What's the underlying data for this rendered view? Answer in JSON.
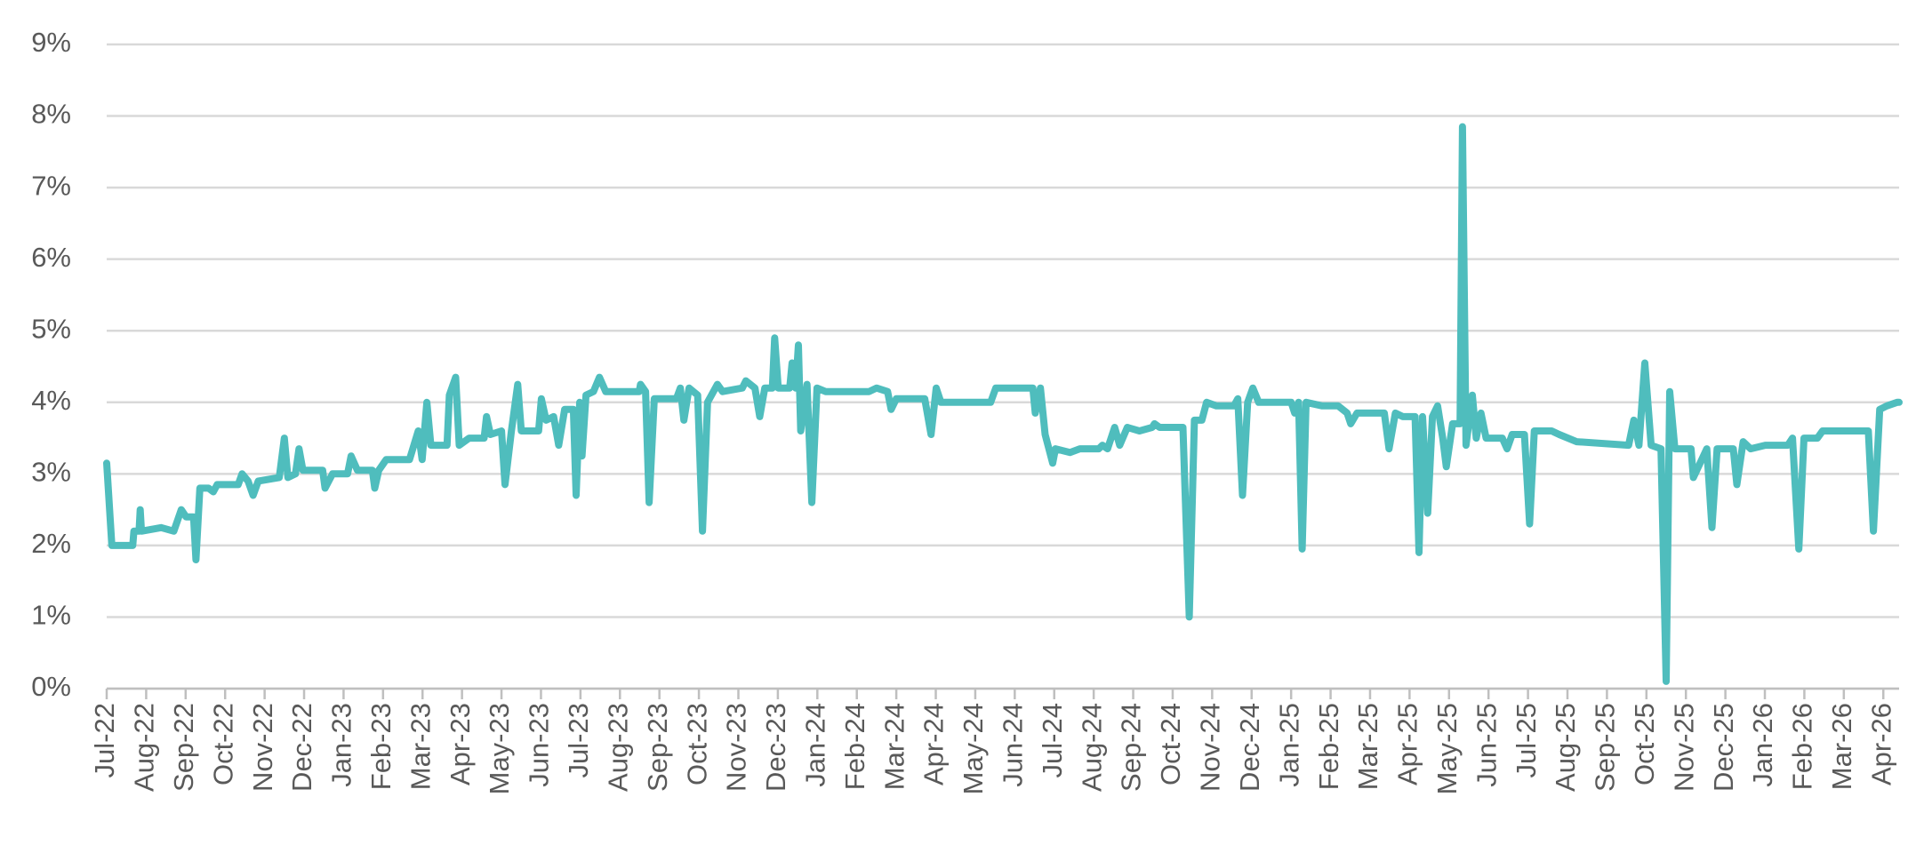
{
  "chart_data": {
    "type": "line",
    "x": [
      0,
      0.13,
      0.66,
      0.69,
      0.82,
      0.85,
      0.88,
      1.38,
      1.7,
      1.89,
      2.01,
      2.2,
      2.26,
      2.36,
      2.58,
      2.7,
      2.8,
      3.33,
      3.43,
      3.58,
      3.71,
      3.84,
      4.37,
      4.5,
      4.59,
      4.78,
      4.87,
      4.97,
      5.47,
      5.53,
      5.72,
      6.1,
      6.19,
      6.35,
      6.73,
      6.79,
      6.89,
      7.08,
      7.67,
      7.89,
      7.99,
      8.11,
      8.21,
      8.62,
      8.68,
      8.84,
      8.93,
      9.18,
      9.56,
      9.62,
      9.72,
      10.0,
      10.09,
      10.25,
      10.41,
      10.5,
      10.94,
      11.01,
      11.13,
      11.32,
      11.45,
      11.6,
      11.82,
      11.89,
      11.98,
      12.04,
      12.14,
      12.33,
      12.48,
      12.64,
      13.49,
      13.52,
      13.65,
      13.74,
      13.87,
      14.43,
      14.53,
      14.62,
      14.75,
      14.97,
      15.09,
      15.22,
      15.47,
      15.6,
      16.1,
      16.19,
      16.42,
      16.54,
      16.67,
      16.86,
      16.92,
      17.01,
      17.3,
      17.36,
      17.45,
      17.52,
      17.58,
      17.74,
      17.86,
      17.99,
      18.21,
      19.31,
      19.5,
      19.78,
      19.87,
      20.0,
      20.72,
      20.88,
      21.01,
      21.13,
      22.39,
      22.52,
      23.46,
      23.52,
      23.65,
      23.77,
      23.96,
      24.03,
      24.4,
      24.65,
      25.13,
      25.22,
      25.35,
      25.53,
      25.66,
      25.85,
      26.16,
      26.48,
      26.54,
      26.67,
      27.26,
      27.42,
      27.55,
      27.74,
      27.86,
      28.11,
      28.55,
      28.65,
      28.77,
      28.9,
      29.03,
      29.18,
      30.0,
      30.09,
      30.19,
      30.28,
      30.38,
      30.79,
      31.19,
      31.42,
      31.51,
      31.67,
      32.36,
      32.48,
      32.64,
      32.83,
      33.14,
      33.24,
      33.33,
      33.46,
      33.58,
      33.71,
      33.84,
      33.93,
      34.09,
      34.28,
      34.34,
      34.43,
      34.59,
      34.69,
      34.81,
      34.94,
      35.35,
      35.47,
      35.6,
      35.91,
      36.04,
      36.16,
      36.6,
      36.79,
      37.23,
      38.55,
      38.68,
      38.81,
      38.96,
      39.12,
      39.37,
      39.5,
      39.59,
      39.72,
      40.13,
      40.19,
      40.53,
      40.66,
      40.79,
      41.2,
      41.29,
      41.45,
      41.64,
      42.01,
      42.58,
      42.7,
      42.86,
      42.99,
      43.33,
      43.46,
      44.62,
      44.75,
      44.91,
      45.09,
      45.35,
      45.4
    ],
    "series": [
      {
        "color": "#4fbdbd",
        "values": [
          3.15,
          2.0,
          2.0,
          2.2,
          2.2,
          2.5,
          2.2,
          2.25,
          2.2,
          2.5,
          2.4,
          2.4,
          1.8,
          2.8,
          2.8,
          2.75,
          2.85,
          2.85,
          3.0,
          2.9,
          2.7,
          2.9,
          2.95,
          3.5,
          2.95,
          3.0,
          3.35,
          3.05,
          3.05,
          2.8,
          3.0,
          3.0,
          3.25,
          3.05,
          3.05,
          2.8,
          3.05,
          3.2,
          3.2,
          3.6,
          3.2,
          4.0,
          3.4,
          3.4,
          4.1,
          4.35,
          3.4,
          3.5,
          3.5,
          3.8,
          3.55,
          3.6,
          2.85,
          3.6,
          4.25,
          3.6,
          3.6,
          4.05,
          3.75,
          3.8,
          3.4,
          3.9,
          3.9,
          2.7,
          4.0,
          3.25,
          4.1,
          4.15,
          4.35,
          4.15,
          4.15,
          4.25,
          4.15,
          2.6,
          4.05,
          4.05,
          4.2,
          3.75,
          4.2,
          4.1,
          2.2,
          4.0,
          4.25,
          4.15,
          4.2,
          4.3,
          4.2,
          3.8,
          4.2,
          4.2,
          4.9,
          4.2,
          4.2,
          4.55,
          4.2,
          4.8,
          3.6,
          4.25,
          2.6,
          4.2,
          4.15,
          4.15,
          4.2,
          4.15,
          3.9,
          4.05,
          4.05,
          3.55,
          4.2,
          4.0,
          4.0,
          4.2,
          4.2,
          3.85,
          4.2,
          3.55,
          3.15,
          3.35,
          3.3,
          3.35,
          3.35,
          3.4,
          3.35,
          3.65,
          3.4,
          3.65,
          3.6,
          3.65,
          3.7,
          3.65,
          3.65,
          1.0,
          3.75,
          3.75,
          4.0,
          3.95,
          3.95,
          4.05,
          2.7,
          4.0,
          4.2,
          4.0,
          4.0,
          3.85,
          4.0,
          1.95,
          4.0,
          3.95,
          3.95,
          3.85,
          3.7,
          3.85,
          3.85,
          3.35,
          3.85,
          3.8,
          3.8,
          1.9,
          3.8,
          2.45,
          3.8,
          3.95,
          3.5,
          3.1,
          3.7,
          3.7,
          7.85,
          3.4,
          4.1,
          3.5,
          3.85,
          3.5,
          3.5,
          3.35,
          3.55,
          3.55,
          2.3,
          3.6,
          3.6,
          3.55,
          3.45,
          3.4,
          3.75,
          3.4,
          4.55,
          3.4,
          3.35,
          0.1,
          4.15,
          3.35,
          3.35,
          2.95,
          3.35,
          2.25,
          3.35,
          3.35,
          2.85,
          3.45,
          3.35,
          3.4,
          3.4,
          3.5,
          1.95,
          3.5,
          3.5,
          3.6,
          3.6,
          2.2,
          3.9,
          3.95,
          4.0,
          4.0
        ]
      }
    ],
    "xlim": [
      0,
      45.4
    ],
    "xticks": [
      {
        "value": 0,
        "label": "Jul-22"
      },
      {
        "value": 1,
        "label": "Aug-22"
      },
      {
        "value": 2,
        "label": "Sep-22"
      },
      {
        "value": 3,
        "label": "Oct-22"
      },
      {
        "value": 4,
        "label": "Nov-22"
      },
      {
        "value": 5,
        "label": "Dec-22"
      },
      {
        "value": 6,
        "label": "Jan-23"
      },
      {
        "value": 7,
        "label": "Feb-23"
      },
      {
        "value": 8,
        "label": "Mar-23"
      },
      {
        "value": 9,
        "label": "Apr-23"
      },
      {
        "value": 10,
        "label": "May-23"
      },
      {
        "value": 11,
        "label": "Jun-23"
      },
      {
        "value": 12,
        "label": "Jul-23"
      },
      {
        "value": 13,
        "label": "Aug-23"
      },
      {
        "value": 14,
        "label": "Sep-23"
      },
      {
        "value": 15,
        "label": "Oct-23"
      },
      {
        "value": 16,
        "label": "Nov-23"
      },
      {
        "value": 17,
        "label": "Dec-23"
      },
      {
        "value": 18,
        "label": "Jan-24"
      },
      {
        "value": 19,
        "label": "Feb-24"
      },
      {
        "value": 20,
        "label": "Mar-24"
      },
      {
        "value": 21,
        "label": "Apr-24"
      },
      {
        "value": 22,
        "label": "May-24"
      },
      {
        "value": 23,
        "label": "Jun-24"
      },
      {
        "value": 24,
        "label": "Jul-24"
      },
      {
        "value": 25,
        "label": "Aug-24"
      },
      {
        "value": 26,
        "label": "Sep-24"
      },
      {
        "value": 27,
        "label": "Oct-24"
      },
      {
        "value": 28,
        "label": "Nov-24"
      },
      {
        "value": 29,
        "label": "Dec-24"
      },
      {
        "value": 30,
        "label": "Jan-25"
      },
      {
        "value": 31,
        "label": "Feb-25"
      },
      {
        "value": 32,
        "label": "Mar-25"
      },
      {
        "value": 33,
        "label": "Apr-25"
      },
      {
        "value": 34,
        "label": "May-25"
      },
      {
        "value": 35,
        "label": "Jun-25"
      },
      {
        "value": 36,
        "label": "Jul-25"
      },
      {
        "value": 37,
        "label": "Aug-25"
      },
      {
        "value": 38,
        "label": "Sep-25"
      },
      {
        "value": 39,
        "label": "Oct-25"
      },
      {
        "value": 40,
        "label": "Nov-25"
      },
      {
        "value": 41,
        "label": "Dec-25"
      },
      {
        "value": 42,
        "label": "Jan-26"
      },
      {
        "value": 43,
        "label": "Feb-26"
      },
      {
        "value": 44,
        "label": "Mar-26"
      },
      {
        "value": 45,
        "label": "Apr-26"
      }
    ],
    "ylim": [
      0,
      9
    ],
    "yticks": [
      {
        "value": 0,
        "label": "0%"
      },
      {
        "value": 1,
        "label": "1%"
      },
      {
        "value": 2,
        "label": "2%"
      },
      {
        "value": 3,
        "label": "3%"
      },
      {
        "value": 4,
        "label": "4%"
      },
      {
        "value": 5,
        "label": "5%"
      },
      {
        "value": 6,
        "label": "6%"
      },
      {
        "value": 7,
        "label": "7%"
      },
      {
        "value": 8,
        "label": "8%"
      },
      {
        "value": 9,
        "label": "9%"
      }
    ],
    "grid": true
  }
}
